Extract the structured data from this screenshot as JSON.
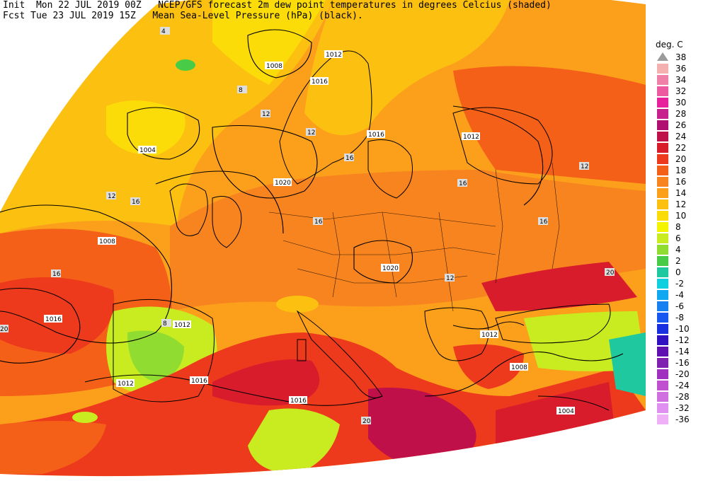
{
  "header": {
    "line1": "Init  Mon 22 JUL 2019 00Z   NCEP/GFS forecast 2m dew point temperatures in degrees Celcius (shaded)",
    "line2": "Fcst Tue 23 JUL 2019 15Z   Mean Sea-Level Pressure (hPa) (black)."
  },
  "legend": {
    "title": "deg. C",
    "items": [
      {
        "label": "38",
        "color": "#9a9a9a"
      },
      {
        "label": "36",
        "color": "#f5b0b0"
      },
      {
        "label": "34",
        "color": "#f080a8"
      },
      {
        "label": "32",
        "color": "#ee5aa0"
      },
      {
        "label": "30",
        "color": "#e8209c"
      },
      {
        "label": "28",
        "color": "#c8208c"
      },
      {
        "label": "26",
        "color": "#b01070"
      },
      {
        "label": "24",
        "color": "#c0104a"
      },
      {
        "label": "22",
        "color": "#d81c2c"
      },
      {
        "label": "20",
        "color": "#ee3a1c"
      },
      {
        "label": "18",
        "color": "#f46018"
      },
      {
        "label": "16",
        "color": "#f88420"
      },
      {
        "label": "14",
        "color": "#fca01c"
      },
      {
        "label": "12",
        "color": "#fcc010"
      },
      {
        "label": "10",
        "color": "#fcdc08"
      },
      {
        "label": "8",
        "color": "#f4f400"
      },
      {
        "label": "6",
        "color": "#c8ec20"
      },
      {
        "label": "4",
        "color": "#90dc30"
      },
      {
        "label": "2",
        "color": "#48cc48"
      },
      {
        "label": "0",
        "color": "#20c8a0"
      },
      {
        "label": "-2",
        "color": "#10d0e0"
      },
      {
        "label": "-4",
        "color": "#10a8f0"
      },
      {
        "label": "-6",
        "color": "#1880f0"
      },
      {
        "label": "-8",
        "color": "#1858f0"
      },
      {
        "label": "-10",
        "color": "#1830e0"
      },
      {
        "label": "-12",
        "color": "#3010c0"
      },
      {
        "label": "-14",
        "color": "#6010b0"
      },
      {
        "label": "-16",
        "color": "#8020b0"
      },
      {
        "label": "-20",
        "color": "#a030c0"
      },
      {
        "label": "-24",
        "color": "#c050d0"
      },
      {
        "label": "-28",
        "color": "#d070e0"
      },
      {
        "label": "-32",
        "color": "#e090f0"
      },
      {
        "label": "-36",
        "color": "#f0b0f8"
      }
    ]
  },
  "map": {
    "isobar_labels": [
      "1008",
      "1016",
      "1004",
      "1012",
      "1020",
      "1016",
      "1008",
      "1016",
      "1012",
      "1020",
      "1012",
      "1016",
      "1012",
      "1016",
      "1008",
      "1004",
      "1012"
    ],
    "temperature_labels": [
      "4",
      "8",
      "12",
      "16",
      "12",
      "16",
      "20",
      "16",
      "12",
      "8",
      "16",
      "12",
      "16",
      "20",
      "16",
      "12",
      "20"
    ]
  }
}
